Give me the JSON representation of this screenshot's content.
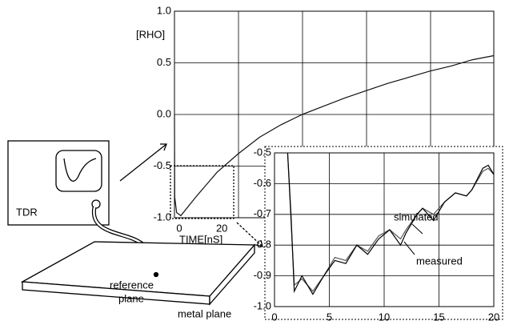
{
  "chart_data": [
    {
      "type": "line",
      "y_label": "[RHO]",
      "x_label": "TIME[nS]",
      "x": [
        0,
        0.1,
        1,
        3,
        10,
        20,
        30,
        40,
        50,
        60,
        70,
        80,
        90,
        100,
        110,
        120,
        130,
        140,
        150
      ],
      "values": [
        0.0,
        -0.8,
        -0.95,
        -0.98,
        -0.8,
        -0.56,
        -0.38,
        -0.22,
        -0.1,
        0.0,
        0.08,
        0.16,
        0.23,
        0.3,
        0.36,
        0.42,
        0.47,
        0.53,
        0.57
      ],
      "color": "#111",
      "xlim": [
        0,
        150
      ],
      "ylim": [
        -1.0,
        1.0
      ],
      "xticks": [
        0,
        20
      ],
      "yticks": [
        {
          "value": -1.0,
          "label": "-1.0"
        },
        {
          "value": -0.5,
          "label": "-0.5"
        },
        {
          "value": 0.0,
          "label": "0.0"
        },
        {
          "value": 0.5,
          "label": "0.5"
        },
        {
          "value": 1.0,
          "label": "1.0"
        }
      ],
      "grid": true
    },
    {
      "type": "line",
      "x": [
        1.2,
        1.5,
        1.8,
        2.5,
        3.5,
        4.5,
        5.5,
        6.5,
        7.5,
        8.5,
        9.5,
        10.5,
        11.5,
        12,
        13,
        13.5,
        14.5,
        15.5,
        16.5,
        17.5,
        18,
        19,
        19.5,
        20
      ],
      "series": [
        {
          "name": "simulated",
          "color": "#555",
          "values": [
            -0.5,
            -0.72,
            -0.93,
            -0.91,
            -0.95,
            -0.9,
            -0.84,
            -0.85,
            -0.8,
            -0.82,
            -0.77,
            -0.75,
            -0.78,
            -0.75,
            -0.7,
            -0.68,
            -0.7,
            -0.66,
            -0.63,
            -0.64,
            -0.62,
            -0.56,
            -0.55,
            -0.57
          ]
        },
        {
          "name": "measured",
          "color": "#000",
          "values": [
            -0.5,
            -0.7,
            -0.95,
            -0.9,
            -0.96,
            -0.9,
            -0.85,
            -0.86,
            -0.8,
            -0.83,
            -0.78,
            -0.75,
            -0.8,
            -0.76,
            -0.7,
            -0.68,
            -0.72,
            -0.66,
            -0.63,
            -0.64,
            -0.62,
            -0.55,
            -0.54,
            -0.57
          ]
        }
      ],
      "xlim": [
        0,
        20
      ],
      "ylim": [
        -1.0,
        -0.5
      ],
      "xticks": [
        0,
        5,
        10,
        15,
        20
      ],
      "yticks": [
        {
          "value": -1.0,
          "label": "-1.0"
        },
        -0.9,
        -0.8,
        -0.7,
        -0.6,
        -0.5
      ],
      "grid": true
    }
  ],
  "diagram": {
    "instrument": "TDR",
    "reference": [
      "reference",
      "plane"
    ],
    "plane": "metal plane"
  }
}
